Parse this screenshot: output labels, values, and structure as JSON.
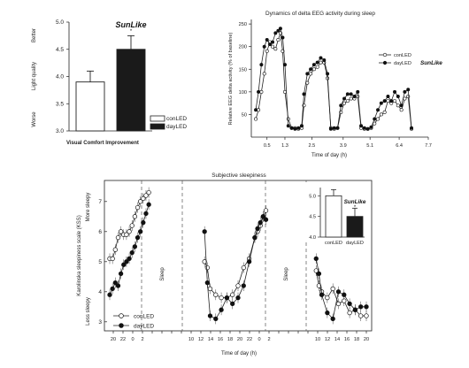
{
  "chart_data": [
    {
      "type": "bar",
      "categories": [
        "conLED",
        "dayLED"
      ],
      "values": [
        3.9,
        4.5
      ],
      "errors": [
        0.2,
        0.25
      ],
      "ylabel": "Light quality",
      "ylim": [
        3.0,
        5.0
      ],
      "yticks": [
        "3.0",
        "3.5",
        "4.0",
        "4.5",
        "5.0"
      ],
      "y_top_label": "Better",
      "y_bottom_label": "Worse",
      "xlabel": "Visual Comfort Improvement",
      "brand": "SunLike",
      "significance": "*",
      "legend": [
        {
          "name": "conLED",
          "color": "#ffffff"
        },
        {
          "name": "dayLED",
          "color": "#1a1a1a"
        }
      ],
      "legend_position": "bottom-right"
    },
    {
      "type": "line",
      "title": "Dynamics of delta EEG activity during sleep",
      "ylabel": "Relative EEG delta activity (% of baseline)",
      "xlabel": "Time of day (h)",
      "xlim": [
        -0.2,
        7.7
      ],
      "ylim": [
        0,
        260
      ],
      "xticks": [
        "0.5",
        "1.3",
        "2.5",
        "3.9",
        "5.1",
        "6.4",
        "7.7"
      ],
      "tick_values": [
        0.5,
        1.3,
        2.5,
        3.9,
        5.1,
        6.4,
        7.7
      ],
      "yticks": [
        "50",
        "100",
        "150",
        "200",
        "250"
      ],
      "ytick_values": [
        50,
        100,
        150,
        200,
        250
      ],
      "brand": "SunLike",
      "legend_position": "top-right",
      "series": [
        {
          "name": "conLED",
          "marker": "open",
          "x": [
            0.0,
            0.12,
            0.25,
            0.38,
            0.5,
            0.63,
            0.75,
            0.88,
            1.0,
            1.1,
            1.2,
            1.3,
            1.45,
            1.6,
            1.75,
            1.9,
            2.05,
            2.15,
            2.3,
            2.45,
            2.6,
            2.75,
            2.9,
            3.05,
            3.2,
            3.35,
            3.5,
            3.65,
            3.8,
            3.95,
            4.1,
            4.25,
            4.4,
            4.55,
            4.7,
            4.85,
            5.0,
            5.15,
            5.3,
            5.45,
            5.6,
            5.75,
            5.9,
            6.05,
            6.2,
            6.35,
            6.5,
            6.65,
            6.8,
            6.95
          ],
          "y": [
            40,
            60,
            100,
            140,
            190,
            210,
            200,
            195,
            215,
            230,
            190,
            100,
            40,
            20,
            20,
            18,
            20,
            70,
            120,
            140,
            150,
            155,
            165,
            165,
            130,
            20,
            18,
            20,
            55,
            75,
            80,
            85,
            85,
            90,
            20,
            18,
            18,
            20,
            30,
            40,
            50,
            55,
            80,
            75,
            80,
            70,
            60,
            85,
            90,
            18
          ]
        },
        {
          "name": "dayLED",
          "marker": "filled",
          "x": [
            0.0,
            0.12,
            0.25,
            0.38,
            0.5,
            0.63,
            0.75,
            0.88,
            1.0,
            1.1,
            1.2,
            1.3,
            1.45,
            1.6,
            1.75,
            1.9,
            2.05,
            2.15,
            2.3,
            2.45,
            2.6,
            2.75,
            2.9,
            3.05,
            3.2,
            3.35,
            3.5,
            3.65,
            3.8,
            3.95,
            4.1,
            4.25,
            4.4,
            4.55,
            4.7,
            4.85,
            5.0,
            5.15,
            5.3,
            5.45,
            5.6,
            5.75,
            5.9,
            6.05,
            6.2,
            6.35,
            6.5,
            6.65,
            6.8,
            6.95
          ],
          "y": [
            60,
            100,
            160,
            200,
            215,
            205,
            210,
            230,
            235,
            240,
            220,
            160,
            25,
            20,
            18,
            20,
            25,
            95,
            140,
            150,
            160,
            165,
            175,
            170,
            140,
            18,
            20,
            20,
            70,
            85,
            95,
            95,
            90,
            100,
            25,
            20,
            18,
            22,
            40,
            60,
            75,
            80,
            90,
            80,
            100,
            90,
            70,
            100,
            105,
            20
          ]
        }
      ]
    },
    {
      "type": "line",
      "title": "Subjective sleepiness",
      "ylabel": "Karolinska sleepiness scale (KSS)",
      "xlabel": "Time of day (h)",
      "y_top_label": "More sleepy",
      "y_bottom_label": "Less sleepy",
      "ylim": [
        2.7,
        7.7
      ],
      "yticks": [
        "3",
        "4",
        "5",
        "6",
        "7"
      ],
      "ytick_values": [
        3,
        4,
        5,
        6,
        7
      ],
      "x_tick_labels": [
        "20",
        "22",
        "0",
        "2",
        "",
        "",
        "",
        "",
        "10",
        "12",
        "14",
        "16",
        "18",
        "20",
        "22",
        "0",
        "2",
        "",
        "",
        "",
        "",
        "10",
        "12",
        "14",
        "16",
        "18",
        "20"
      ],
      "sleep_labels": [
        "Sleep",
        "Sleep"
      ],
      "legend": [
        {
          "name": "conLED",
          "marker": "open"
        },
        {
          "name": "dayLED",
          "marker": "filled"
        }
      ],
      "legend_position": "bottom-left",
      "series": [
        {
          "name": "conLED",
          "marker": "open",
          "segments": [
            {
              "x": [
                0,
                0.5,
                1,
                1.5,
                2,
                2.5,
                3,
                3.5,
                4,
                4.5,
                5,
                5.5,
                6,
                6.5,
                7
              ],
              "y": [
                5.1,
                5.1,
                5.4,
                5.8,
                6.0,
                5.9,
                5.9,
                6.0,
                6.2,
                6.5,
                6.8,
                7.0,
                7.1,
                7.2,
                7.3
              ]
            },
            {
              "x": [
                17,
                17.5,
                18,
                19,
                20,
                21,
                22,
                23,
                24,
                25,
                26,
                26.5,
                27,
                27.5,
                28
              ],
              "y": [
                5.0,
                4.8,
                4.1,
                3.9,
                3.8,
                3.8,
                3.9,
                4.2,
                4.8,
                5.1,
                5.8,
                6.0,
                6.2,
                6.5,
                6.7
              ]
            },
            {
              "x": [
                37,
                37.5,
                38,
                39,
                40,
                41,
                42,
                43,
                44,
                45,
                46
              ],
              "y": [
                4.7,
                4.2,
                4.0,
                3.8,
                4.1,
                3.6,
                3.7,
                3.3,
                3.4,
                3.2,
                3.2
              ]
            }
          ]
        },
        {
          "name": "dayLED",
          "marker": "filled",
          "segments": [
            {
              "x": [
                0,
                0.5,
                1,
                1.5,
                2,
                2.5,
                3,
                3.5,
                4,
                4.5,
                5,
                5.5,
                6,
                6.5,
                7
              ],
              "y": [
                3.9,
                4.1,
                4.3,
                4.2,
                4.6,
                4.9,
                5.0,
                5.1,
                5.3,
                5.5,
                5.8,
                6.0,
                6.3,
                6.6,
                6.9
              ]
            },
            {
              "x": [
                17,
                17.5,
                18,
                19,
                20,
                21,
                22,
                23,
                24,
                25,
                26,
                26.5,
                27,
                27.5,
                28
              ],
              "y": [
                6.0,
                4.3,
                3.2,
                3.1,
                3.4,
                3.8,
                3.6,
                3.8,
                4.2,
                5.0,
                5.8,
                6.1,
                6.3,
                6.5,
                6.4
              ]
            },
            {
              "x": [
                37,
                37.5,
                38,
                39,
                40,
                41,
                42,
                43,
                44,
                45,
                46
              ],
              "y": [
                5.1,
                4.6,
                3.9,
                3.3,
                3.1,
                4.0,
                3.9,
                3.6,
                3.4,
                3.5,
                3.5
              ]
            }
          ]
        }
      ],
      "inset": {
        "type": "bar",
        "categories": [
          "conLED",
          "dayLED"
        ],
        "values": [
          5.0,
          4.5
        ],
        "errors": [
          0.15,
          0.2
        ],
        "ylim": [
          4.0,
          5.2
        ],
        "yticks": [
          "4.0",
          "4.5",
          "5.0"
        ],
        "brand": "SunLike",
        "significance": "*"
      }
    }
  ]
}
